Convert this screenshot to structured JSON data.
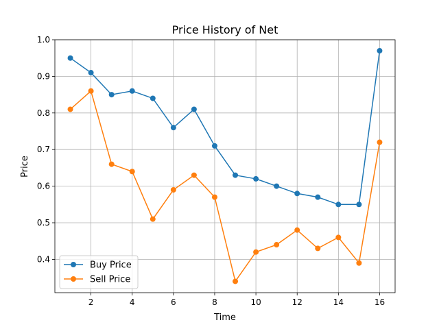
{
  "chart_data": {
    "type": "line",
    "title": "Price History of Net",
    "xlabel": "Time",
    "ylabel": "Price",
    "x": [
      1,
      2,
      3,
      4,
      5,
      6,
      7,
      8,
      9,
      10,
      11,
      12,
      13,
      14,
      15,
      16
    ],
    "xticks": [
      2,
      4,
      6,
      8,
      10,
      12,
      14,
      16
    ],
    "yticks": [
      0.4,
      0.5,
      0.6,
      0.7,
      0.8,
      0.9,
      1.0
    ],
    "xlim": [
      0.25,
      16.75
    ],
    "ylim": [
      0.309,
      1.0
    ],
    "grid": true,
    "legend": "lower-left",
    "series": [
      {
        "name": "Buy Price",
        "color": "#1f77b4",
        "values": [
          0.95,
          0.91,
          0.85,
          0.86,
          0.84,
          0.76,
          0.81,
          0.71,
          0.63,
          0.62,
          0.6,
          0.58,
          0.57,
          0.55,
          0.55,
          0.97
        ]
      },
      {
        "name": "Sell Price",
        "color": "#ff7f0e",
        "values": [
          0.81,
          0.86,
          0.66,
          0.64,
          0.51,
          0.59,
          0.63,
          0.57,
          0.34,
          0.42,
          0.44,
          0.48,
          0.43,
          0.46,
          0.39,
          0.72
        ]
      }
    ]
  }
}
